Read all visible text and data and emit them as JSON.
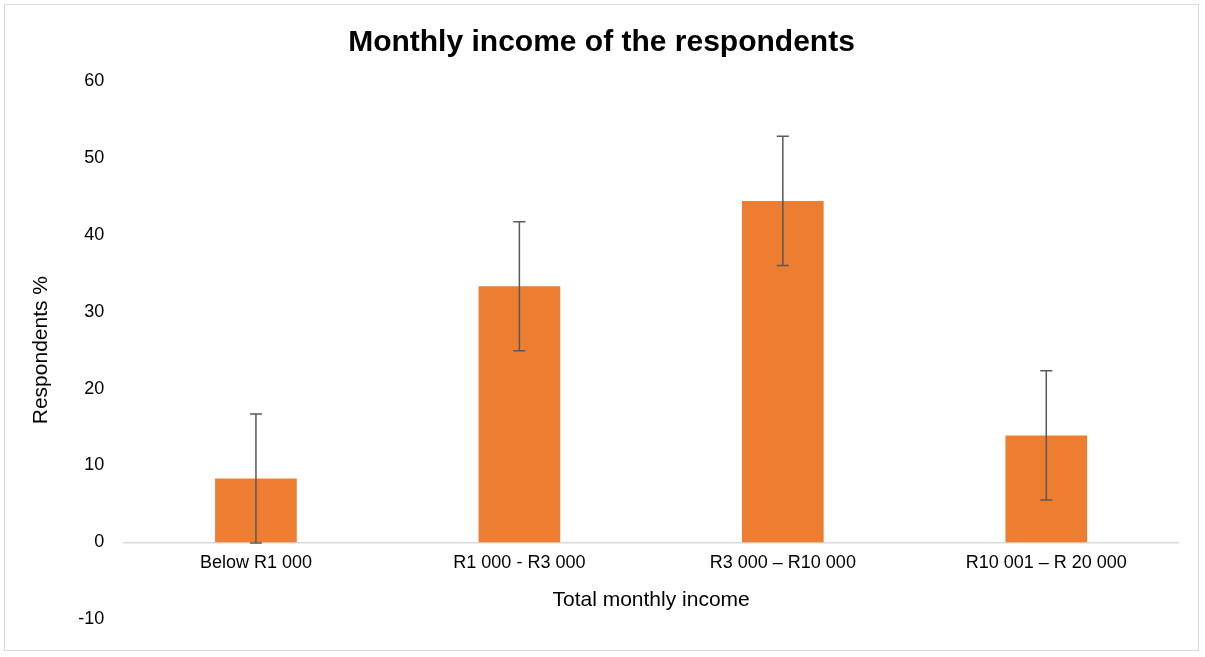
{
  "chart_data": {
    "type": "bar",
    "title": "Monthly income of the respondents",
    "xlabel": "Total monthly income",
    "ylabel": "Respondents %",
    "categories": [
      "Below R1 000",
      "R1 000 - R3 000",
      "R3 000 – R10 000",
      "R10 001 – R 20 000"
    ],
    "values": [
      8.3,
      33.3,
      44.4,
      13.9
    ],
    "errors": [
      8.4,
      8.4,
      8.4,
      8.4
    ],
    "color": "#ed7d31",
    "ylim": [
      -10,
      60
    ],
    "yticks": [
      -10,
      0,
      10,
      20,
      30,
      40,
      50,
      60
    ],
    "grid": false
  }
}
